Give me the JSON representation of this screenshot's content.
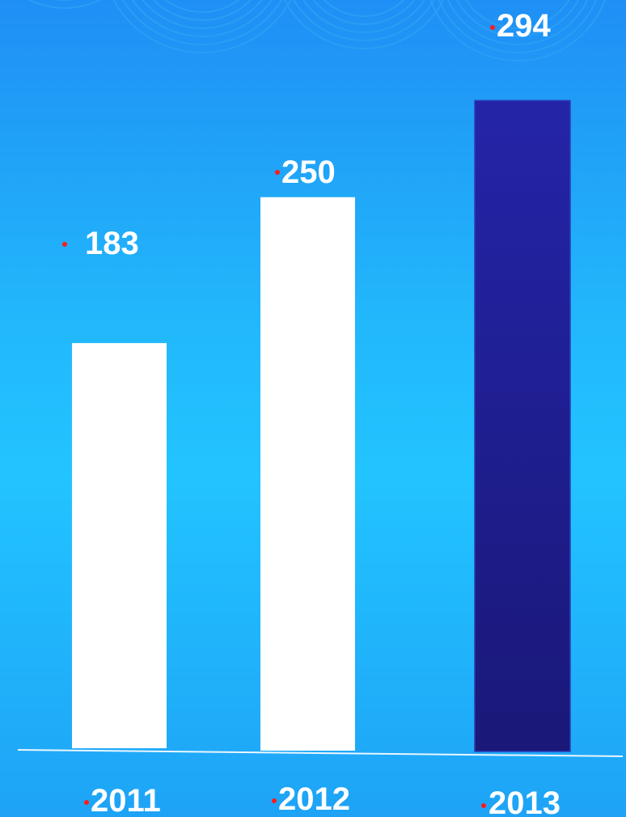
{
  "chart_data": {
    "type": "bar",
    "categories": [
      "2011",
      "2012",
      "2013"
    ],
    "values": [
      183,
      250,
      294
    ],
    "value_labels": [
      "183",
      "250",
      "294"
    ],
    "title": "",
    "xlabel": "",
    "ylabel": "",
    "ylim": [
      0,
      300
    ],
    "grid": false,
    "legend": "none",
    "bar_colors": [
      "#ffffff",
      "#ffffff",
      "#22229e"
    ],
    "background_color": "#22b8fb",
    "label_color": "#ffffff",
    "bullet_color": "#ff1a1a",
    "axis_color": "#e8f4ff"
  }
}
